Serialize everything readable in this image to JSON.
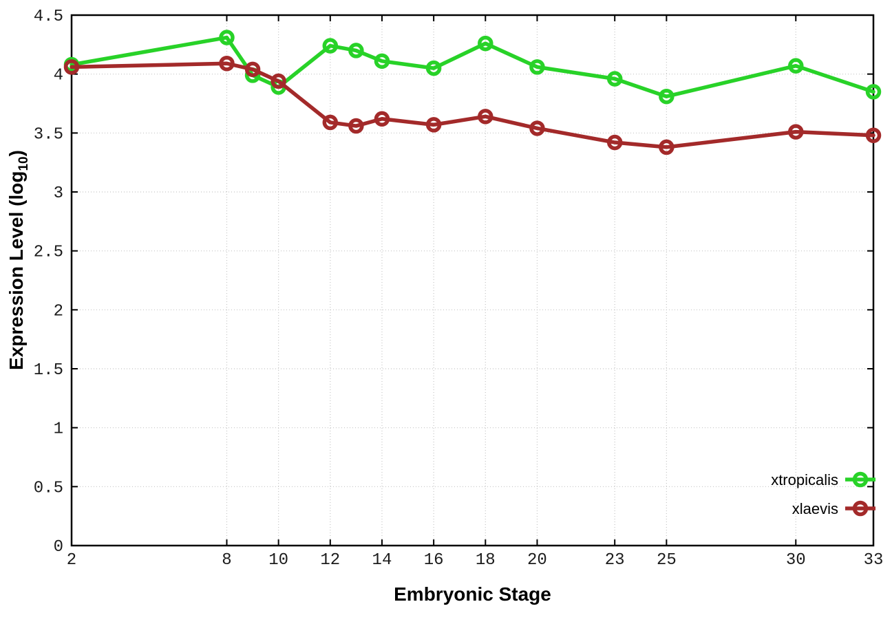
{
  "axis_titles": {
    "x": "Embryonic Stage",
    "y_prefix": "Expression Level (log",
    "y_sub": "10",
    "y_suffix": ")"
  },
  "chart_data": {
    "type": "line",
    "title": "",
    "xlabel": "Embryonic Stage",
    "ylabel": "Expression Level (log10)",
    "x": [
      2,
      8,
      9,
      10,
      12,
      13,
      14,
      16,
      18,
      20,
      23,
      25,
      30,
      33
    ],
    "xlim": [
      2,
      33
    ],
    "ylim": [
      0,
      4.5
    ],
    "xticks": [
      2,
      8,
      10,
      12,
      14,
      16,
      18,
      20,
      23,
      25,
      30,
      33
    ],
    "yticks": [
      0,
      0.5,
      1,
      1.5,
      2,
      2.5,
      3,
      3.5,
      4,
      4.5
    ],
    "grid": true,
    "legend_position": "inside-bottom-right",
    "series": [
      {
        "name": "xtropicalis",
        "color": "#28d228",
        "marker": "open-circle",
        "values": [
          4.08,
          4.31,
          3.99,
          3.89,
          4.24,
          4.2,
          4.11,
          4.05,
          4.26,
          4.06,
          3.96,
          3.81,
          4.07,
          3.85
        ]
      },
      {
        "name": "xlaevis",
        "color": "#a32a2a",
        "marker": "open-circle",
        "values": [
          4.06,
          4.09,
          4.04,
          3.94,
          3.59,
          3.56,
          3.62,
          3.57,
          3.64,
          3.54,
          3.42,
          3.38,
          3.51,
          3.48
        ]
      }
    ],
    "style": {
      "grid_color": "#c4c4c4",
      "axis_color": "#000000",
      "tick_label_color": "#1c1c1c"
    }
  }
}
